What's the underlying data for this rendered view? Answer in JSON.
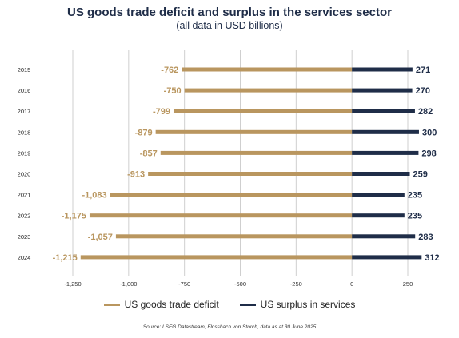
{
  "header": {
    "title": "US goods trade deficit and surplus in the services sector",
    "subtitle": "(all data in USD billions)"
  },
  "colors": {
    "deficit": "#b9965f",
    "surplus": "#1f2d48",
    "grid": "#cfcfcf",
    "text": "#1f2d48"
  },
  "chart_data": {
    "type": "bar",
    "orientation": "horizontal",
    "categories": [
      "2015",
      "2016",
      "2017",
      "2018",
      "2019",
      "2020",
      "2021",
      "2022",
      "2023",
      "2024"
    ],
    "series": [
      {
        "name": "US goods trade deficit",
        "values": [
          -762,
          -750,
          -799,
          -879,
          -857,
          -913,
          -1083,
          -1175,
          -1057,
          -1215
        ],
        "labels": [
          "-762",
          "-750",
          "-799",
          "-879",
          "-857",
          "-913",
          "-1,083",
          "-1,175",
          "-1,057",
          "-1,215"
        ]
      },
      {
        "name": "US surplus in services",
        "values": [
          271,
          270,
          282,
          300,
          298,
          259,
          235,
          235,
          283,
          312
        ],
        "labels": [
          "271",
          "270",
          "282",
          "300",
          "298",
          "259",
          "235",
          "235",
          "283",
          "312"
        ]
      }
    ],
    "xlim": [
      -1250,
      250
    ],
    "xticks": [
      -1250,
      -1000,
      -750,
      -500,
      -250,
      0,
      250
    ],
    "xtick_labels": [
      "-1,250",
      "-1,000",
      "-750",
      "-500",
      "-250",
      "0",
      "250"
    ],
    "grid": true,
    "legend_position": "bottom"
  },
  "legend": {
    "deficit_label": "US goods trade deficit",
    "surplus_label": "US surplus in services"
  },
  "source": "Source: LSEG Datastream, Flossbach von Storch, data as at 30 June 2025"
}
